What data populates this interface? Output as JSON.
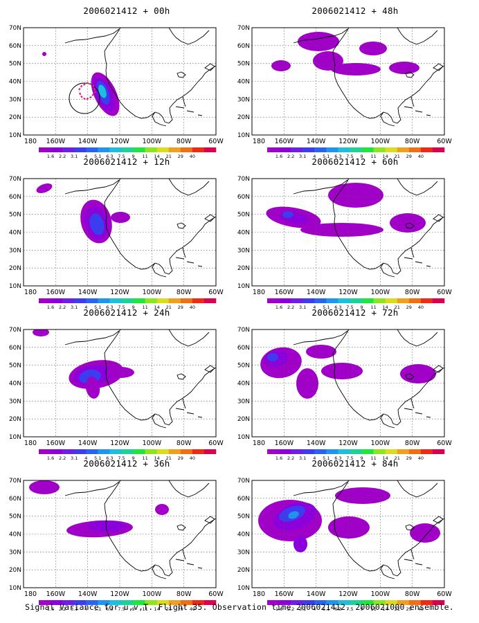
{
  "figure": {
    "caption": "Signal Variance for u,v,T. Flight 35. Observation time 2006021412. 2006021000 ensemble."
  },
  "panels": [
    {
      "title": "2006021412 + 00h",
      "lead": "00h"
    },
    {
      "title": "2006021412 + 48h",
      "lead": "48h"
    },
    {
      "title": "2006021412 + 12h",
      "lead": "12h"
    },
    {
      "title": "2006021412 + 60h",
      "lead": "60h"
    },
    {
      "title": "2006021412 + 24h",
      "lead": "24h"
    },
    {
      "title": "2006021412 + 72h",
      "lead": "72h"
    },
    {
      "title": "2006021412 + 36h",
      "lead": "36h"
    },
    {
      "title": "2006021412 + 84h",
      "lead": "84h"
    }
  ],
  "axes": {
    "lat_labels": [
      "70N",
      "60N",
      "50N",
      "40N",
      "30N",
      "20N",
      "10N"
    ],
    "lon_labels": [
      "180",
      "160W",
      "140W",
      "120W",
      "100W",
      "80W",
      "60W"
    ]
  },
  "colorbar": {
    "labels": [
      "1.6",
      "2.2",
      "3.1",
      "4",
      "5.1",
      "6.3",
      "7.5",
      "9",
      "11",
      "14",
      "21",
      "29",
      "40"
    ],
    "colors": [
      "#a000c8",
      "#8c00dc",
      "#6e1ee6",
      "#3c3cf0",
      "#2864f0",
      "#1e96f0",
      "#1ebedc",
      "#1ed296",
      "#1ee63c",
      "#8ce61e",
      "#dcdc1e",
      "#f0a01e",
      "#f06e14",
      "#f02814",
      "#dc0050"
    ]
  },
  "legend_marker": {
    "circle_color": "#000000",
    "flight_track_color": "#e0207a"
  }
}
